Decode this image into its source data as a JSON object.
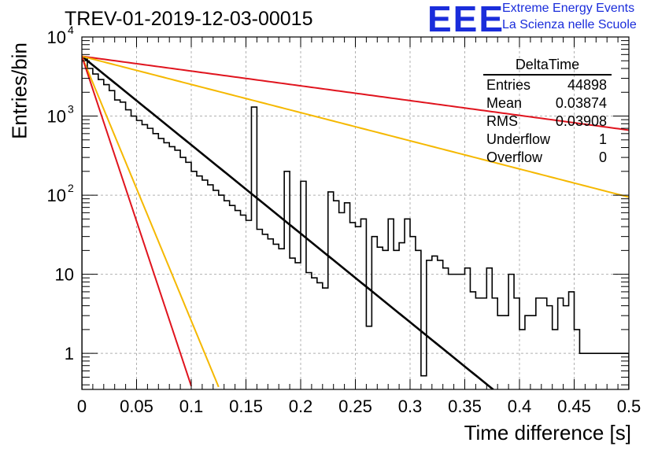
{
  "header": {
    "title": "TREV-01-2019-12-03-00015",
    "logo_text": "EEE",
    "logo_line1": "Extreme Energy Events",
    "logo_line2": "La Scienza nelle Scuole"
  },
  "stats_box": {
    "title": "DeltaTime",
    "rows": [
      {
        "label": "Entries",
        "value": "44898"
      },
      {
        "label": "Mean",
        "value": "0.03874"
      },
      {
        "label": "RMS",
        "value": "0.03908"
      },
      {
        "label": "Underflow",
        "value": "1"
      },
      {
        "label": "Overflow",
        "value": "0"
      }
    ]
  },
  "colors": {
    "logo": "#1a2ddb",
    "histogram": "#000000",
    "fit": "#000000",
    "red_line": "#e0141e",
    "yellow_line": "#f5b800",
    "grid": "#b0b0b0"
  },
  "chart_data": {
    "type": "line",
    "title": "TREV-01-2019-12-03-00015",
    "xlabel": "Time difference [s]",
    "ylabel": "Entries/bin",
    "xlim": [
      0,
      0.5
    ],
    "ylim": [
      0.35,
      10000
    ],
    "yscale": "log",
    "grid": true,
    "x_ticks": [
      "0",
      "0.05",
      "0.1",
      "0.15",
      "0.2",
      "0.25",
      "0.3",
      "0.35",
      "0.4",
      "0.45",
      "0.5"
    ],
    "y_ticks": [
      {
        "value": 1,
        "base": "1",
        "exp": ""
      },
      {
        "value": 10,
        "base": "10",
        "exp": ""
      },
      {
        "value": 100,
        "base": "10",
        "exp": "2"
      },
      {
        "value": 1000,
        "base": "10",
        "exp": "3"
      },
      {
        "value": 10000,
        "base": "10",
        "exp": "4"
      }
    ],
    "histogram": {
      "name": "DeltaTime",
      "bin_width": 0.005,
      "x_start": 0,
      "values": [
        5500,
        4000,
        3400,
        2900,
        2500,
        2100,
        1600,
        1500,
        1200,
        1000,
        880,
        780,
        700,
        600,
        520,
        460,
        410,
        370,
        300,
        260,
        200,
        175,
        155,
        135,
        115,
        100,
        85,
        74,
        64,
        56,
        48,
        42,
        37,
        32,
        28,
        24,
        21,
        18,
        16,
        14,
        12,
        10.5,
        9,
        7.8,
        6.7,
        5.9,
        5,
        4.4,
        3.8,
        3.3,
        2.9,
        2.5,
        2.2,
        1.9,
        1.6,
        1.4,
        1.2,
        1.05,
        0.92,
        0.8,
        0.7,
        0.6,
        0.52,
        0.45,
        0.4,
        0.35,
        0.31,
        0.27,
        0.24,
        0.21,
        0.18,
        0.16,
        0.14,
        0.12,
        0.11,
        0.095
      ],
      "overrides": [
        [
          0.155,
          1300
        ],
        [
          0.185,
          200
        ],
        [
          0.2,
          150
        ],
        [
          0.225,
          110
        ],
        [
          0.23,
          85
        ],
        [
          0.235,
          60
        ],
        [
          0.24,
          80
        ],
        [
          0.245,
          45
        ],
        [
          0.25,
          40
        ],
        [
          0.255,
          50
        ],
        [
          0.265,
          30
        ],
        [
          0.27,
          22
        ],
        [
          0.275,
          20
        ],
        [
          0.28,
          50
        ],
        [
          0.285,
          20
        ],
        [
          0.29,
          25
        ],
        [
          0.295,
          50
        ],
        [
          0.3,
          30
        ],
        [
          0.305,
          20
        ],
        [
          0.315,
          15
        ],
        [
          0.32,
          17
        ],
        [
          0.325,
          15
        ],
        [
          0.33,
          12
        ],
        [
          0.335,
          10
        ],
        [
          0.34,
          10
        ],
        [
          0.345,
          10
        ],
        [
          0.35,
          12
        ],
        [
          0.355,
          6
        ],
        [
          0.36,
          5
        ],
        [
          0.365,
          5
        ],
        [
          0.37,
          12
        ],
        [
          0.375,
          5
        ],
        [
          0.38,
          3
        ],
        [
          0.385,
          3
        ],
        [
          0.39,
          10
        ],
        [
          0.395,
          5
        ],
        [
          0.4,
          2
        ],
        [
          0.405,
          3
        ],
        [
          0.41,
          3
        ],
        [
          0.415,
          5
        ],
        [
          0.42,
          5
        ],
        [
          0.425,
          4
        ],
        [
          0.43,
          2
        ],
        [
          0.435,
          5
        ],
        [
          0.44,
          4
        ],
        [
          0.445,
          6
        ],
        [
          0.45,
          2
        ],
        [
          0.455,
          1
        ],
        [
          0.46,
          1
        ],
        [
          0.465,
          1
        ],
        [
          0.47,
          1
        ],
        [
          0.475,
          1
        ],
        [
          0.48,
          1
        ],
        [
          0.485,
          1
        ],
        [
          0.49,
          1
        ],
        [
          0.495,
          1
        ]
      ]
    },
    "series": [
      {
        "color": "black",
        "y0": 5700,
        "slope": -25.8,
        "x_end": 0.376
      },
      {
        "color": "red",
        "y0": 5700,
        "slope": -4.3,
        "x_end": 0.5
      },
      {
        "color": "yellow",
        "y0": 5700,
        "slope": -8.2,
        "x_end": 0.5
      },
      {
        "color": "yellow",
        "y0": 5700,
        "slope": -77,
        "x_end": 0.125
      },
      {
        "color": "red",
        "y0": 5700,
        "slope": -96,
        "x_end": 0.1
      }
    ]
  }
}
